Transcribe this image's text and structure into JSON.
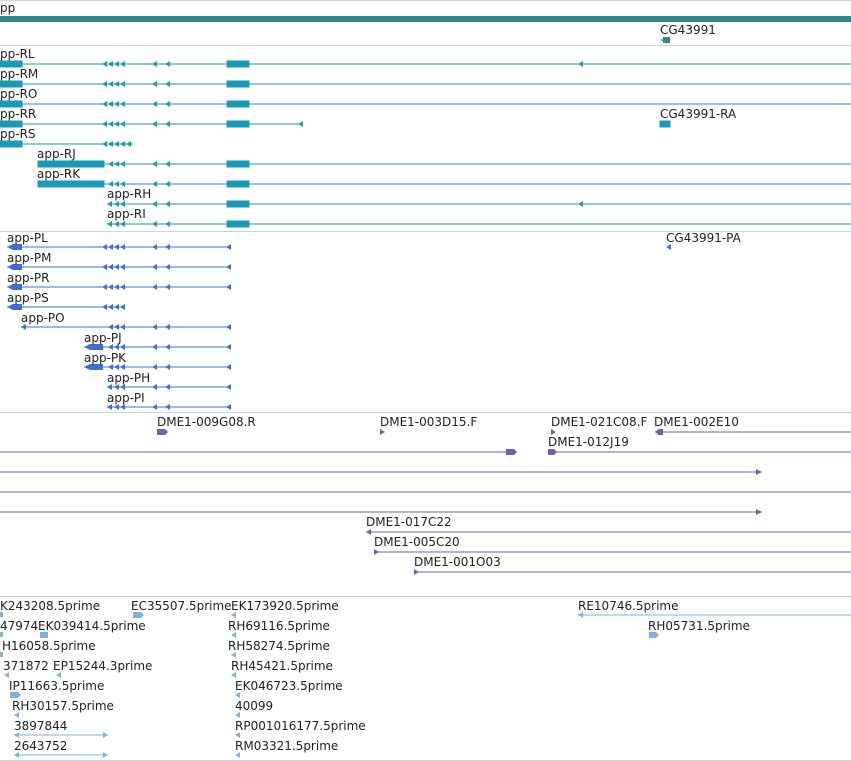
{
  "colors": {
    "gene": "#2e8a8a",
    "transcript": "#1a9ab5",
    "protein": "#3f6fd1",
    "clone": "#7a5bb0",
    "est": "#7fb2dc",
    "separator": "#b9cfe0"
  },
  "gene_track": {
    "label": "pp",
    "gene_name": "CG43991"
  },
  "transcripts": [
    {
      "label": "pp-RL"
    },
    {
      "label": "pp-RM"
    },
    {
      "label": "pp-RO"
    },
    {
      "label": "pp-RR"
    },
    {
      "label": "pp-RS"
    },
    {
      "label": "app-RJ"
    },
    {
      "label": "app-RK"
    },
    {
      "label": "app-RH"
    },
    {
      "label": "app-RI"
    },
    {
      "label": "CG43991-RA"
    }
  ],
  "proteins": [
    {
      "label": "app-PL"
    },
    {
      "label": "app-PM"
    },
    {
      "label": "app-PR"
    },
    {
      "label": "app-PS"
    },
    {
      "label": "app-PO"
    },
    {
      "label": "app-PJ"
    },
    {
      "label": "app-PK"
    },
    {
      "label": "app-PH"
    },
    {
      "label": "app-PI"
    },
    {
      "label": "CG43991-PA"
    }
  ],
  "clones": [
    {
      "label": "DME1-009G08.R"
    },
    {
      "label": "DME1-003D15.F"
    },
    {
      "label": "DME1-021C08.F"
    },
    {
      "label": "DME1-002E10"
    },
    {
      "label": "DME1-012J19"
    },
    {
      "label": "DME1-017C22"
    },
    {
      "label": "DME1-005C20"
    },
    {
      "label": "DME1-001O03"
    }
  ],
  "ests": [
    {
      "label": "K243208.5prime"
    },
    {
      "label": "EC35507.5prime"
    },
    {
      "label": "EK173920.5prime"
    },
    {
      "label": "RE10746.5prime"
    },
    {
      "label": "47974"
    },
    {
      "label": "EK039414.5prime"
    },
    {
      "label": "RH69116.5prime"
    },
    {
      "label": "RH05731.5prime"
    },
    {
      "label": "H16058.5prime"
    },
    {
      "label": "RH58274.5prime"
    },
    {
      "label": "371872"
    },
    {
      "label": "EP15244.3prime"
    },
    {
      "label": "RH45421.5prime"
    },
    {
      "label": "IP11663.5prime"
    },
    {
      "label": "EK046723.5prime"
    },
    {
      "label": "RH30157.5prime"
    },
    {
      "label": "40099"
    },
    {
      "label": "3897844"
    },
    {
      "label": "RP001016177.5prime"
    },
    {
      "label": "2643752"
    },
    {
      "label": "RM03321.5prime"
    }
  ]
}
